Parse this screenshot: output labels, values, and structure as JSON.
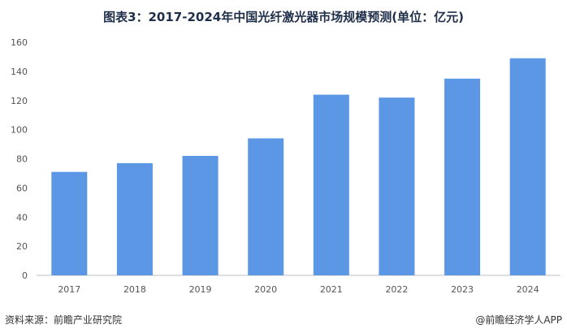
{
  "chart_data": {
    "type": "bar",
    "title": "图表3：2017-2024年中国光纤激光器市场规模预测(单位：亿元)",
    "categories": [
      "2017",
      "2018",
      "2019",
      "2020",
      "2021",
      "2022",
      "2023",
      "2024"
    ],
    "values": [
      71,
      77,
      82,
      94,
      124,
      122,
      135,
      149
    ],
    "ylim": [
      0,
      160
    ],
    "yticks": [
      0,
      20,
      40,
      60,
      80,
      100,
      120,
      140,
      160
    ],
    "xlabel": "",
    "ylabel": "",
    "bar_color": "#5b97e5",
    "grid": false,
    "legend": "none"
  },
  "footer": {
    "source": "资料来源：前瞻产业研究院",
    "credit": "@前瞻经济学人APP"
  }
}
